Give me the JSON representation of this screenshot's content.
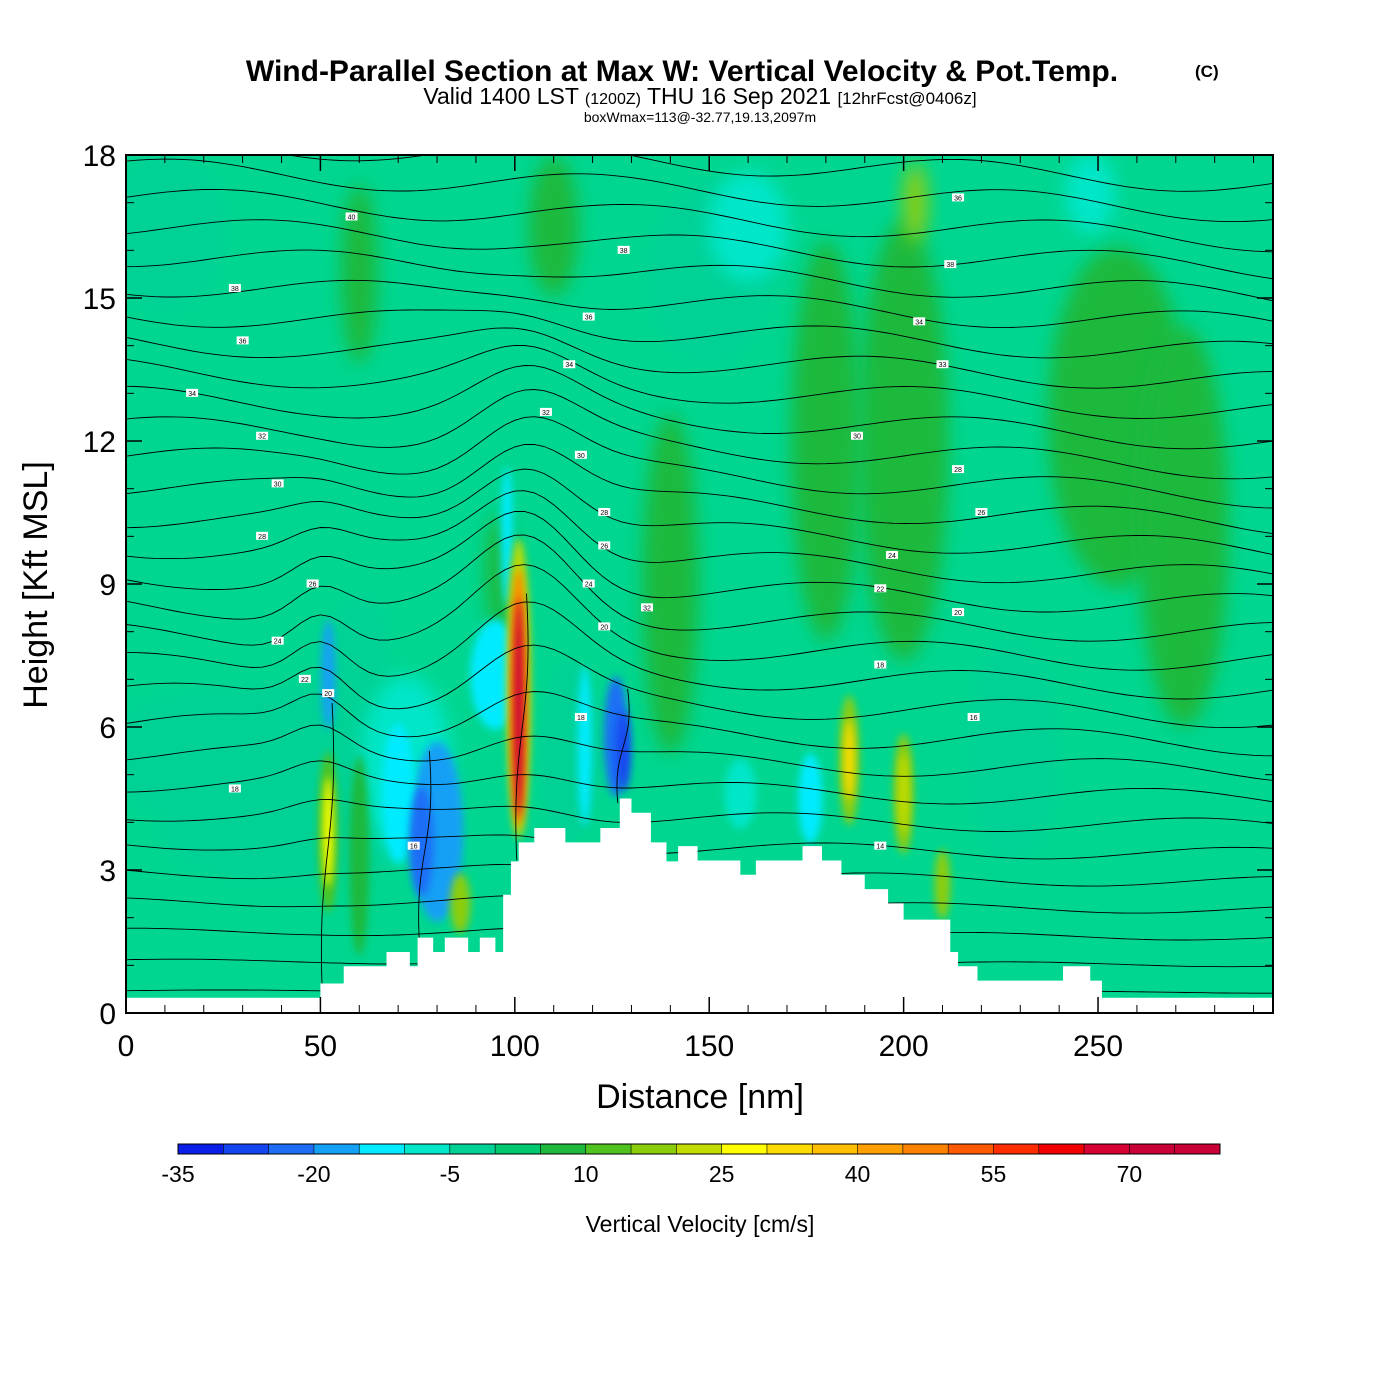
{
  "chart_data": {
    "type": "heatmap",
    "title": "Wind-Parallel Section at Max W: Vertical Velocity & Pot.Temp.",
    "copyright_mark": "(C)",
    "subtitle": {
      "valid_prefix": "Valid 1400 LST",
      "utc": "(1200Z)",
      "date": "THU 16 Sep 2021",
      "forecast": "[12hrFcst@0406z]"
    },
    "box_info": "boxWmax=113@-32.77,19.13,2097m",
    "xlabel": "Distance [nm]",
    "ylabel": "Height [Kft MSL]",
    "xlim": [
      0,
      295
    ],
    "ylim": [
      0,
      18
    ],
    "x_ticks": [
      "0",
      "50",
      "100",
      "150",
      "200",
      "250"
    ],
    "x_tick_values": [
      0,
      50,
      100,
      150,
      200,
      250
    ],
    "y_ticks": [
      "0",
      "3",
      "6",
      "9",
      "12",
      "15",
      "18"
    ],
    "y_tick_values": [
      0,
      3,
      6,
      9,
      12,
      15,
      18
    ],
    "colorbar": {
      "label": "Vertical Velocity [cm/s]",
      "min": -35,
      "max": 80,
      "step": 5,
      "tick_labels": [
        "-35",
        "-20",
        "-5",
        "10",
        "25",
        "40",
        "55",
        "70"
      ],
      "tick_values": [
        -35,
        -20,
        -5,
        10,
        25,
        40,
        55,
        70
      ],
      "colors": [
        "#0a1ee8",
        "#1446f0",
        "#1e6ef5",
        "#14a0f5",
        "#00ebff",
        "#00e6c8",
        "#00d296",
        "#00c86e",
        "#1eb93c",
        "#50c31e",
        "#8ccd0a",
        "#c3dc00",
        "#ffff00",
        "#ffdc00",
        "#ffbe00",
        "#ffa000",
        "#ff8200",
        "#ff5a00",
        "#ff2d00",
        "#f00000",
        "#d70032",
        "#c80037",
        "#c80037"
      ]
    },
    "terrain_profile": {
      "x": [
        0,
        50,
        56,
        67,
        70,
        73,
        75,
        79,
        82,
        88,
        91,
        95,
        97,
        99,
        101,
        105,
        113,
        122,
        127,
        130,
        135,
        139,
        142,
        147,
        158,
        162,
        174,
        179,
        184,
        190,
        196,
        200,
        203,
        212,
        214,
        219,
        241,
        248,
        251,
        295
      ],
      "y": [
        0.32,
        0.62,
        0.98,
        1.28,
        1.28,
        0.98,
        1.58,
        1.28,
        1.58,
        1.28,
        1.58,
        1.28,
        2.48,
        3.18,
        3.58,
        3.88,
        3.58,
        3.88,
        4.5,
        4.2,
        3.58,
        3.18,
        3.5,
        3.2,
        2.9,
        3.2,
        3.5,
        3.2,
        2.9,
        2.6,
        2.3,
        1.96,
        1.96,
        1.28,
        0.98,
        0.68,
        0.98,
        0.68,
        0.32,
        0.32
      ]
    },
    "updrafts_cm_s": [
      {
        "x": 101,
        "z_kft": 6.5,
        "w": 70
      },
      {
        "x": 52,
        "z_kft": 3.8,
        "w": 28
      },
      {
        "x": 186,
        "z_kft": 5.3,
        "w": 27
      },
      {
        "x": 200,
        "z_kft": 4.5,
        "w": 22
      }
    ],
    "downdrafts_cm_s": [
      {
        "x": 77,
        "z_kft": 4.0,
        "w": -20
      },
      {
        "x": 128,
        "z_kft": 5.6,
        "w": -25
      },
      {
        "x": 52,
        "z_kft": 7.0,
        "w": -18
      },
      {
        "x": 99,
        "z_kft": 10.0,
        "w": -15
      }
    ],
    "theta_contour_labels": [
      {
        "text": "40",
        "x": 58,
        "z": 16.7
      },
      {
        "text": "38",
        "x": 28,
        "z": 15.2
      },
      {
        "text": "36",
        "x": 30,
        "z": 14.1
      },
      {
        "text": "34",
        "x": 17,
        "z": 13.0
      },
      {
        "text": "32",
        "x": 35,
        "z": 12.1
      },
      {
        "text": "30",
        "x": 39,
        "z": 11.1
      },
      {
        "text": "28",
        "x": 35,
        "z": 10.0
      },
      {
        "text": "26",
        "x": 48,
        "z": 9.0
      },
      {
        "text": "24",
        "x": 39,
        "z": 7.8
      },
      {
        "text": "22",
        "x": 46,
        "z": 7.0
      },
      {
        "text": "20",
        "x": 52,
        "z": 6.7
      },
      {
        "text": "18",
        "x": 28,
        "z": 4.7
      },
      {
        "text": "16",
        "x": 74,
        "z": 3.5
      },
      {
        "text": "38",
        "x": 128,
        "z": 16.0
      },
      {
        "text": "36",
        "x": 119,
        "z": 14.6
      },
      {
        "text": "34",
        "x": 114,
        "z": 13.6
      },
      {
        "text": "32",
        "x": 108,
        "z": 12.6
      },
      {
        "text": "30",
        "x": 117,
        "z": 11.7
      },
      {
        "text": "28",
        "x": 123,
        "z": 10.5
      },
      {
        "text": "26",
        "x": 123,
        "z": 9.8
      },
      {
        "text": "24",
        "x": 119,
        "z": 9.0
      },
      {
        "text": "32",
        "x": 134,
        "z": 8.5
      },
      {
        "text": "20",
        "x": 123,
        "z": 8.1
      },
      {
        "text": "18",
        "x": 117,
        "z": 6.2
      },
      {
        "text": "36",
        "x": 214,
        "z": 17.1
      },
      {
        "text": "38",
        "x": 212,
        "z": 15.7
      },
      {
        "text": "34",
        "x": 204,
        "z": 14.5
      },
      {
        "text": "33",
        "x": 210,
        "z": 13.6
      },
      {
        "text": "30",
        "x": 188,
        "z": 12.1
      },
      {
        "text": "28",
        "x": 214,
        "z": 11.4
      },
      {
        "text": "26",
        "x": 220,
        "z": 10.5
      },
      {
        "text": "24",
        "x": 197,
        "z": 9.6
      },
      {
        "text": "22",
        "x": 194,
        "z": 8.9
      },
      {
        "text": "20",
        "x": 214,
        "z": 8.4
      },
      {
        "text": "18",
        "x": 194,
        "z": 7.3
      },
      {
        "text": "16",
        "x": 218,
        "z": 6.2
      },
      {
        "text": "14",
        "x": 194,
        "z": 3.5
      }
    ]
  }
}
